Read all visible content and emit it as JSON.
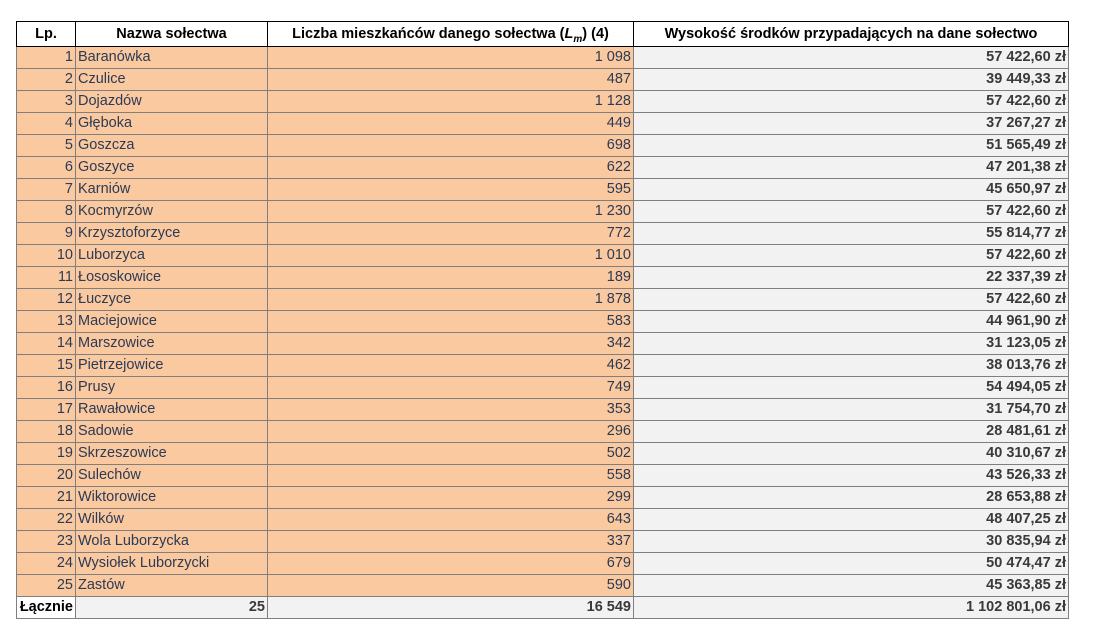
{
  "headers": {
    "lp": "Lp.",
    "name": "Nazwa sołectwa",
    "population_prefix": "Liczba mieszkańców danego sołectwa (",
    "population_symbol": "L",
    "population_subscript": "m",
    "population_suffix": ")  (4)",
    "amount": "Wysokość środków przypadających na dane sołectwo"
  },
  "rows": [
    {
      "lp": "1",
      "name": "Baranówka",
      "population": "1 098",
      "amount": "57 422,60 zł"
    },
    {
      "lp": "2",
      "name": "Czulice",
      "population": "487",
      "amount": "39 449,33 zł"
    },
    {
      "lp": "3",
      "name": "Dojazdów",
      "population": "1 128",
      "amount": "57 422,60 zł"
    },
    {
      "lp": "4",
      "name": "Głęboka",
      "population": "449",
      "amount": "37 267,27 zł"
    },
    {
      "lp": "5",
      "name": "Goszcza",
      "population": "698",
      "amount": "51 565,49 zł"
    },
    {
      "lp": "6",
      "name": "Goszyce",
      "population": "622",
      "amount": "47 201,38 zł"
    },
    {
      "lp": "7",
      "name": "Karniów",
      "population": "595",
      "amount": "45 650,97 zł"
    },
    {
      "lp": "8",
      "name": "Kocmyrzów",
      "population": "1 230",
      "amount": "57 422,60 zł"
    },
    {
      "lp": "9",
      "name": "Krzysztoforzyce",
      "population": "772",
      "amount": "55 814,77 zł"
    },
    {
      "lp": "10",
      "name": "Luborzyca",
      "population": "1 010",
      "amount": "57 422,60 zł"
    },
    {
      "lp": "11",
      "name": "Łososkowice",
      "population": "189",
      "amount": "22 337,39 zł"
    },
    {
      "lp": "12",
      "name": "Łuczyce",
      "population": "1 878",
      "amount": "57 422,60 zł"
    },
    {
      "lp": "13",
      "name": "Maciejowice",
      "population": "583",
      "amount": "44 961,90 zł"
    },
    {
      "lp": "14",
      "name": "Marszowice",
      "population": "342",
      "amount": "31 123,05 zł"
    },
    {
      "lp": "15",
      "name": "Pietrzejowice",
      "population": "462",
      "amount": "38 013,76 zł"
    },
    {
      "lp": "16",
      "name": "Prusy",
      "population": "749",
      "amount": "54 494,05 zł"
    },
    {
      "lp": "17",
      "name": "Rawałowice",
      "population": "353",
      "amount": "31 754,70 zł"
    },
    {
      "lp": "18",
      "name": "Sadowie",
      "population": "296",
      "amount": "28 481,61 zł"
    },
    {
      "lp": "19",
      "name": "Skrzeszowice",
      "population": "502",
      "amount": "40 310,67 zł"
    },
    {
      "lp": "20",
      "name": "Sulechów",
      "population": "558",
      "amount": "43 526,33 zł"
    },
    {
      "lp": "21",
      "name": "Wiktorowice",
      "population": "299",
      "amount": "28 653,88 zł"
    },
    {
      "lp": "22",
      "name": "Wilków",
      "population": "643",
      "amount": "48 407,25 zł"
    },
    {
      "lp": "23",
      "name": "Wola Luborzycka",
      "population": "337",
      "amount": "30 835,94 zł"
    },
    {
      "lp": "24",
      "name": "Wysiołek Luborzycki",
      "population": "679",
      "amount": "50 474,47 zł"
    },
    {
      "lp": "25",
      "name": "Zastów",
      "population": "590",
      "amount": "45 363,85 zł"
    }
  ],
  "totals": {
    "label": "Łącznie",
    "count": "25",
    "population": "16 549",
    "amount": "1 102 801,06 zł"
  },
  "colors": {
    "data_fill": "#fac9a0",
    "amount_fill": "#f2f2f2",
    "grid": "#7f7f7f"
  }
}
